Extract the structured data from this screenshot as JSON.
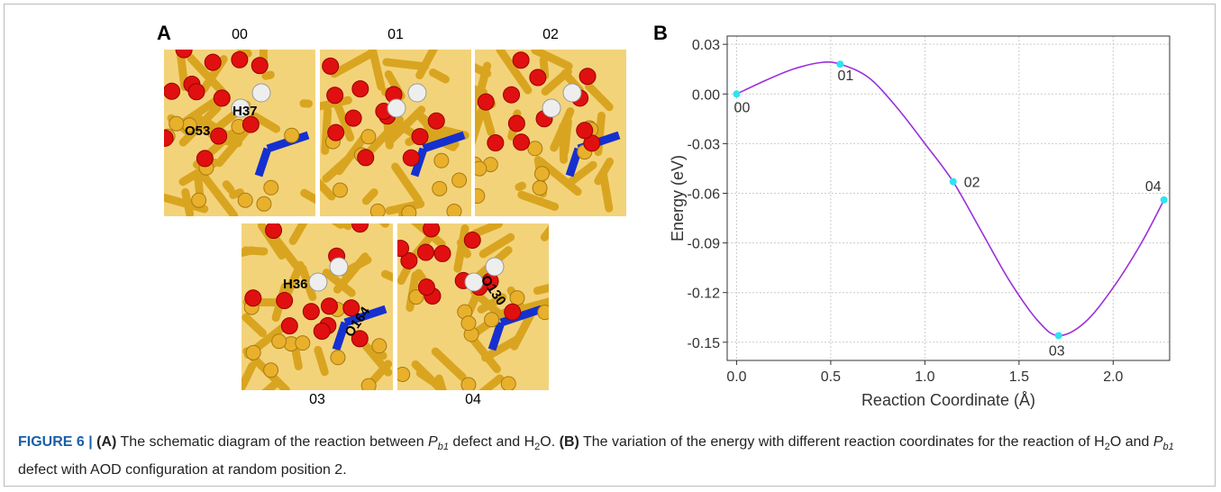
{
  "panel_a": {
    "label": "A",
    "frames": [
      {
        "label": "00",
        "atoms": [
          "H37",
          "O53"
        ]
      },
      {
        "label": "01",
        "atoms": []
      },
      {
        "label": "02",
        "atoms": []
      },
      {
        "label": "03",
        "atoms": [
          "H36",
          "O164"
        ]
      },
      {
        "label": "04",
        "atoms": [
          "O130"
        ]
      }
    ]
  },
  "chart_data": {
    "type": "line",
    "panel_label": "B",
    "x_label": "Reaction Coordinate (Å)",
    "y_label": "Energy (eV)",
    "x": [
      0,
      0.15,
      0.3,
      0.45,
      0.55,
      0.7,
      0.85,
      1.0,
      1.15,
      1.3,
      1.45,
      1.6,
      1.71,
      1.85,
      2.0,
      2.15,
      2.27
    ],
    "series": [
      {
        "color": "#9b30d9",
        "values": [
          0,
          0.008,
          0.015,
          0.019,
          0.018,
          0.01,
          -0.008,
          -0.03,
          -0.053,
          -0.083,
          -0.113,
          -0.137,
          -0.146,
          -0.138,
          -0.117,
          -0.09,
          -0.064
        ]
      }
    ],
    "points": {
      "color": "#2fe3f0",
      "x": [
        0,
        0.55,
        1.15,
        1.71,
        2.27
      ],
      "values": [
        0,
        0.018,
        -0.053,
        -0.146,
        -0.064
      ],
      "labels": [
        "00",
        "01",
        "02",
        "03",
        "04"
      ]
    },
    "xlim": [
      -0.05,
      2.3
    ],
    "xticks": [
      {
        "value": 0,
        "label": "0.0"
      },
      {
        "value": 0.5,
        "label": "0.5"
      },
      {
        "value": 1,
        "label": "1.0"
      },
      {
        "value": 1.5,
        "label": "1.5"
      },
      {
        "value": 2,
        "label": "2.0"
      }
    ],
    "ylim": [
      -0.161,
      0.035
    ],
    "yticks": [
      0.03,
      {
        "value": 0,
        "label": "0.00"
      },
      -0.03,
      -0.06,
      -0.09,
      -0.12,
      -0.15
    ],
    "grid": true
  },
  "caption": {
    "parts": [
      "FIGURE 6 | ",
      "(A)",
      " The schematic diagram of the reaction between ",
      "P",
      "b1",
      " defect and H",
      "2",
      "O. ",
      "(B)",
      " The variation of the energy with different reaction coordinates for the reaction of H",
      "2",
      "O and ",
      "P",
      "b1",
      " defect with AOD configuration at random position 2."
    ]
  }
}
